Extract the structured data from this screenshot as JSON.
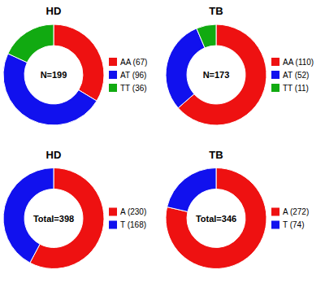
{
  "chart_data": [
    {
      "type": "donut",
      "title": "HD",
      "categories": [
        "AA (67)",
        "AT (96)",
        "TT (36)"
      ],
      "values": [
        67,
        96,
        36
      ],
      "colors": [
        "#EE1111",
        "#1111EE",
        "#11AA11"
      ],
      "annotations": [
        "N=199"
      ],
      "legend": "right"
    },
    {
      "type": "donut",
      "title": "TB",
      "categories": [
        "AA (110)",
        "AT (52)",
        "TT (11)"
      ],
      "values": [
        110,
        52,
        11
      ],
      "colors": [
        "#EE1111",
        "#1111EE",
        "#11AA11"
      ],
      "annotations": [
        "N=173"
      ],
      "legend": "right"
    },
    {
      "type": "donut",
      "title": "HD",
      "categories": [
        "A (230)",
        "T (168)"
      ],
      "values": [
        230,
        168
      ],
      "colors": [
        "#EE1111",
        "#1111EE"
      ],
      "annotations": [
        "Total=398"
      ],
      "legend": "right"
    },
    {
      "type": "donut",
      "title": "TB",
      "categories": [
        "A (272)",
        "T (74)"
      ],
      "values": [
        272,
        74
      ],
      "colors": [
        "#EE1111",
        "#1111EE"
      ],
      "annotations": [
        "Total=346"
      ],
      "legend": "right"
    }
  ]
}
